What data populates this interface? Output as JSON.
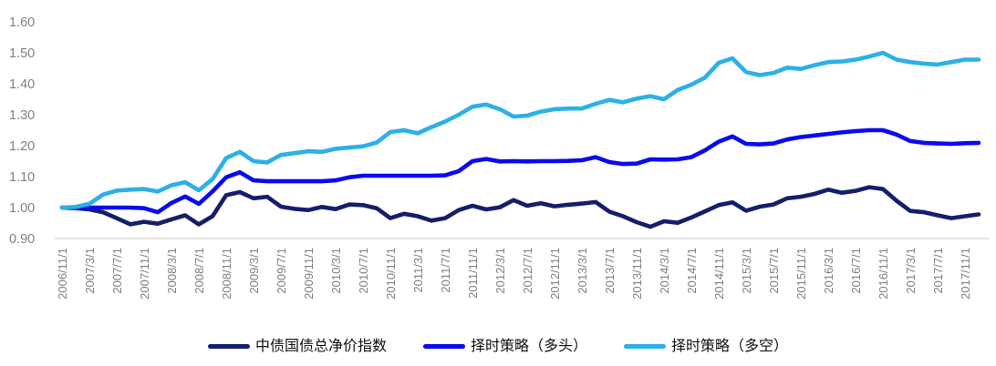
{
  "chart_data": {
    "type": "line",
    "title": "",
    "grid": false,
    "legend_position": "bottom",
    "axis_color": "#d9d9d9",
    "label_color": "#808080",
    "y_axis": {
      "min": 0.9,
      "max": 1.6,
      "tick_step": 0.1,
      "ticks": [
        "0.90",
        "1.00",
        "1.10",
        "1.20",
        "1.30",
        "1.40",
        "1.50",
        "1.60"
      ]
    },
    "x_axis": {
      "tick_interval_months": 4,
      "tick_labels": [
        "2006/11/1",
        "2007/3/1",
        "2007/7/1",
        "2007/11/1",
        "2008/3/1",
        "2008/7/1",
        "2008/11/1",
        "2009/3/1",
        "2009/7/1",
        "2009/11/1",
        "2010/3/1",
        "2010/7/1",
        "2010/11/1",
        "2011/3/1",
        "2011/7/1",
        "2011/11/1",
        "2012/3/1",
        "2012/7/1",
        "2012/11/1",
        "2013/3/1",
        "2013/7/1",
        "2013/11/1",
        "2014/3/1",
        "2014/7/1",
        "2014/11/1",
        "2015/3/1",
        "2015/7/1",
        "2015/11/1",
        "2016/3/1",
        "2016/7/1",
        "2016/11/1",
        "2017/3/1",
        "2017/7/1",
        "2017/11/1"
      ]
    },
    "sample_step_months": 2,
    "series": [
      {
        "name": "中债国债总净价指数",
        "color": "#141e6b",
        "values": [
          1.0,
          0.998,
          0.994,
          0.985,
          0.966,
          0.946,
          0.954,
          0.948,
          0.962,
          0.975,
          0.946,
          0.972,
          1.04,
          1.05,
          1.03,
          1.035,
          1.003,
          0.996,
          0.992,
          1.002,
          0.995,
          1.01,
          1.008,
          0.998,
          0.966,
          0.98,
          0.972,
          0.958,
          0.966,
          0.992,
          1.006,
          0.994,
          1.001,
          1.024,
          1.006,
          1.014,
          1.004,
          1.009,
          1.013,
          1.018,
          0.987,
          0.972,
          0.953,
          0.938,
          0.956,
          0.951,
          0.968,
          0.988,
          1.008,
          1.017,
          0.99,
          1.003,
          1.01,
          1.03,
          1.035,
          1.044,
          1.058,
          1.048,
          1.054,
          1.066,
          1.06,
          1.022,
          0.989,
          0.985,
          0.975,
          0.966,
          0.972,
          0.978
        ]
      },
      {
        "name": "择时策略（多头）",
        "color": "#0a0af0",
        "values": [
          1.0,
          1.0,
          1.0,
          1.0,
          1.0,
          1.0,
          0.998,
          0.985,
          1.015,
          1.036,
          1.012,
          1.052,
          1.098,
          1.114,
          1.088,
          1.085,
          1.085,
          1.085,
          1.085,
          1.085,
          1.088,
          1.098,
          1.103,
          1.103,
          1.103,
          1.103,
          1.103,
          1.103,
          1.104,
          1.118,
          1.15,
          1.157,
          1.149,
          1.15,
          1.149,
          1.15,
          1.15,
          1.151,
          1.153,
          1.163,
          1.147,
          1.141,
          1.142,
          1.156,
          1.155,
          1.156,
          1.163,
          1.185,
          1.213,
          1.23,
          1.206,
          1.204,
          1.207,
          1.22,
          1.228,
          1.233,
          1.238,
          1.243,
          1.247,
          1.25,
          1.25,
          1.236,
          1.215,
          1.209,
          1.207,
          1.206,
          1.208,
          1.209
        ]
      },
      {
        "name": "择时策略（多空）",
        "color": "#2bb0e8",
        "values": [
          1.0,
          1.002,
          1.012,
          1.042,
          1.055,
          1.058,
          1.06,
          1.052,
          1.072,
          1.082,
          1.056,
          1.092,
          1.16,
          1.18,
          1.15,
          1.146,
          1.17,
          1.176,
          1.182,
          1.18,
          1.19,
          1.194,
          1.198,
          1.21,
          1.244,
          1.25,
          1.24,
          1.26,
          1.278,
          1.3,
          1.326,
          1.333,
          1.318,
          1.294,
          1.297,
          1.31,
          1.318,
          1.32,
          1.32,
          1.335,
          1.348,
          1.34,
          1.352,
          1.36,
          1.35,
          1.38,
          1.397,
          1.42,
          1.468,
          1.482,
          1.438,
          1.428,
          1.435,
          1.452,
          1.448,
          1.46,
          1.47,
          1.472,
          1.478,
          1.488,
          1.5,
          1.478,
          1.47,
          1.465,
          1.462,
          1.47,
          1.478,
          1.478
        ]
      }
    ]
  }
}
